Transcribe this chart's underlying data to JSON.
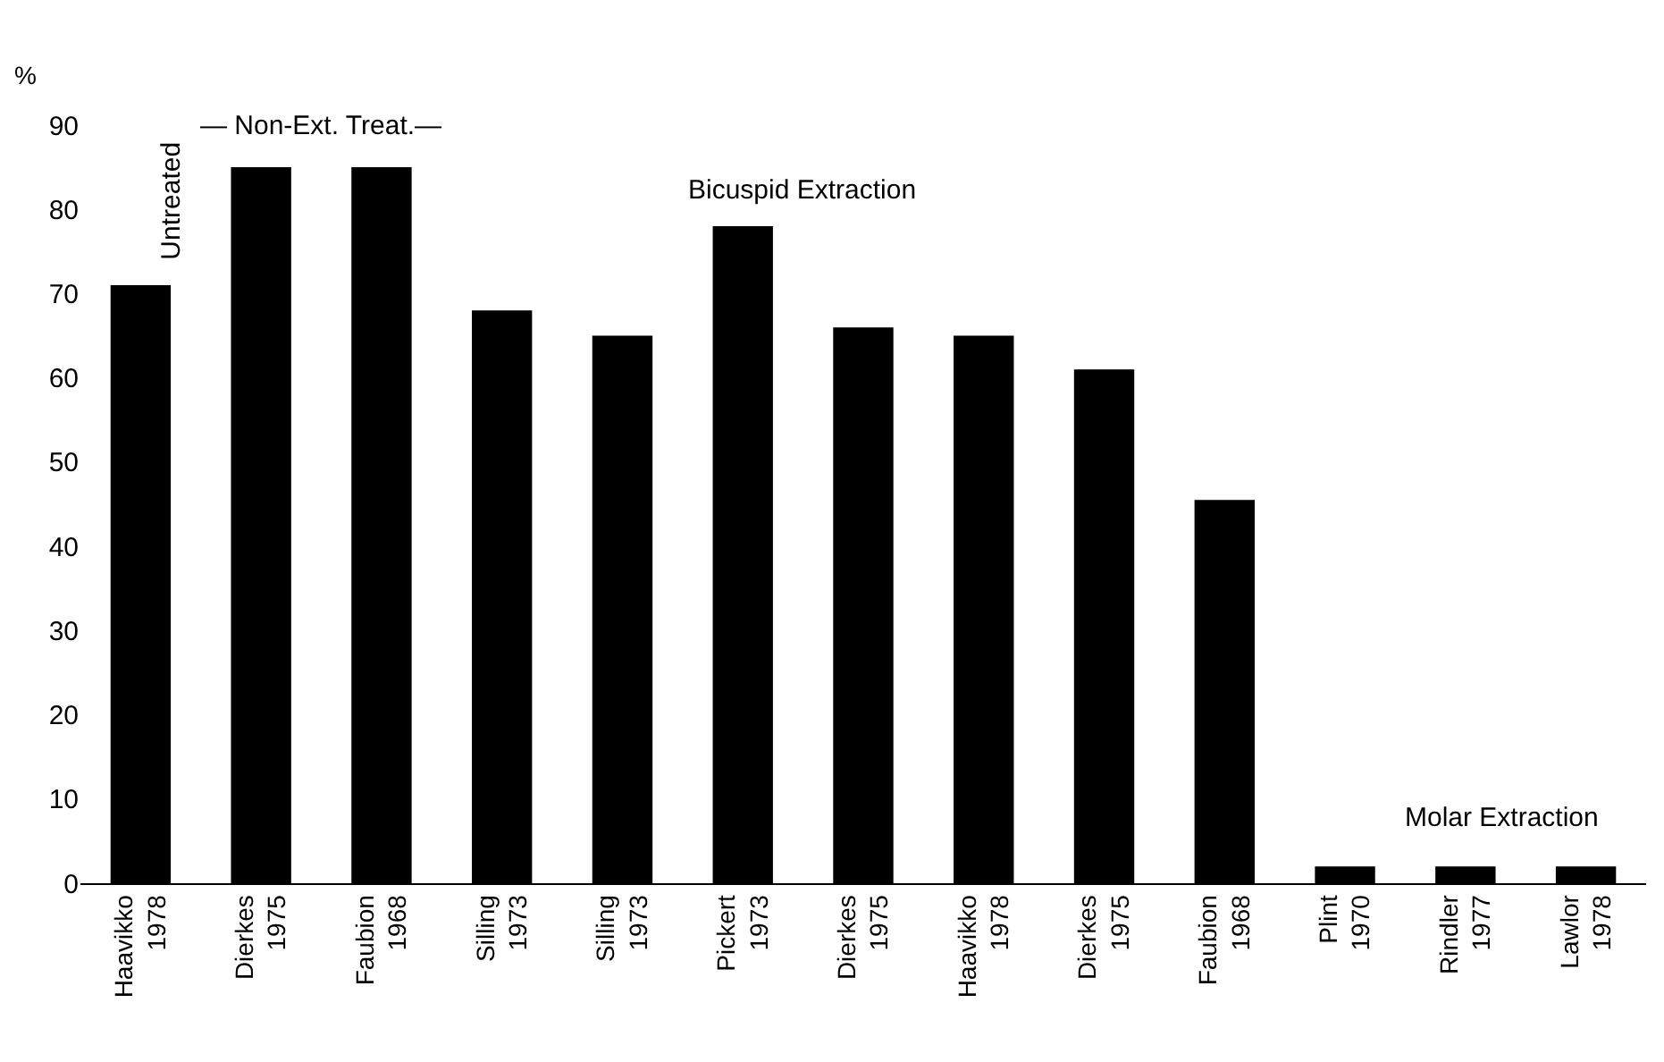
{
  "chart_data": {
    "type": "bar",
    "ylabel": "%",
    "categories": [
      "Haavikko\n1978",
      "Dierkes\n1975",
      "Faubion\n1968",
      "Silling\n1973",
      "Silling\n1973",
      "Pickert\n1973",
      "Dierkes\n1975",
      "Haavikko\n1978",
      "Dierkes\n1975",
      "Faubion\n1968",
      "Plint\n1970",
      "Rindler\n1977",
      "Lawlor\n1978"
    ],
    "values": [
      71,
      85,
      85,
      68,
      65,
      78,
      66,
      65,
      61,
      45.5,
      2,
      2,
      2
    ],
    "color": "#000000",
    "ylim": [
      0,
      90
    ],
    "yticks": [
      0,
      10,
      20,
      30,
      40,
      50,
      60,
      70,
      80,
      90
    ],
    "annotations": [
      "Untreated",
      "— Non-Ext. Treat.—",
      "Bicuspid Extraction",
      "Molar Extraction"
    ]
  }
}
